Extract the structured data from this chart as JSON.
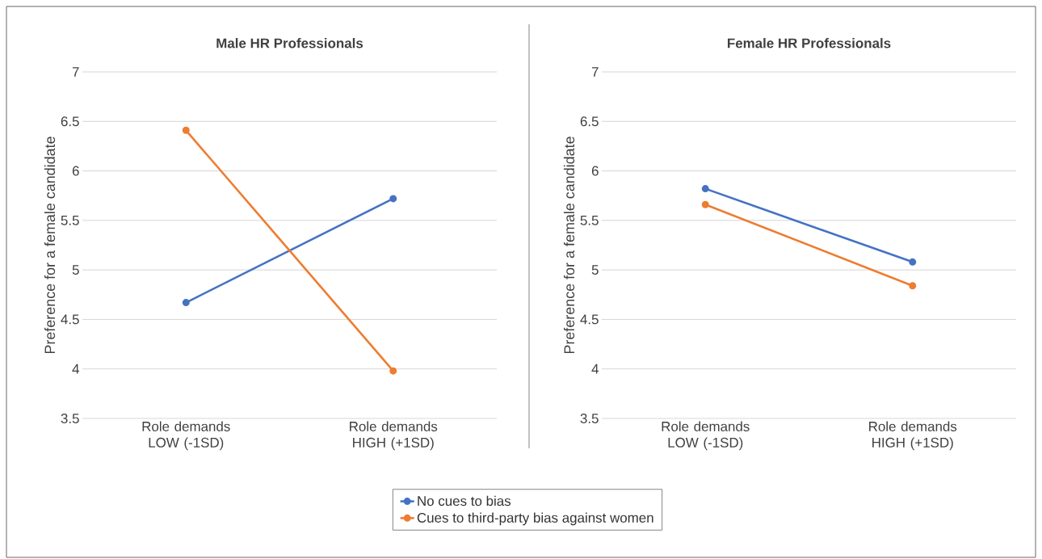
{
  "chart_data": [
    {
      "type": "line",
      "title": "Male HR Professionals",
      "ylabel": "Preference for a female candidate",
      "categories": [
        "Role demands LOW (-1SD)",
        "Role demands HIGH (+1SD)"
      ],
      "series": [
        {
          "name": "No cues to bias",
          "color": "#4472c4",
          "values": [
            4.67,
            5.72
          ]
        },
        {
          "name": "Cues to third-party bias against women",
          "color": "#ed7d31",
          "values": [
            6.41,
            3.98
          ]
        }
      ],
      "ylim": [
        3.5,
        7
      ],
      "yticks": [
        3.5,
        4,
        4.5,
        5,
        5.5,
        6,
        6.5,
        7
      ],
      "grid": "y",
      "legend": "bottom",
      "marker": "circle",
      "line_style": "solid"
    },
    {
      "type": "line",
      "title": "Female HR Professionals",
      "ylabel": "Preference for a female candidate",
      "categories": [
        "Role demands LOW (-1SD)",
        "Role demands HIGH (+1SD)"
      ],
      "series": [
        {
          "color": "#4472c4",
          "values": [
            5.82,
            5.08
          ]
        },
        {
          "color": "#ed7d31",
          "values": [
            5.66,
            4.84
          ]
        }
      ],
      "ylim": [
        3.5,
        7
      ],
      "yticks": [
        3.5,
        4,
        4.5,
        5,
        5.5,
        6,
        6.5,
        7
      ],
      "grid": "y",
      "marker": "circle",
      "line_style": "solid"
    }
  ]
}
